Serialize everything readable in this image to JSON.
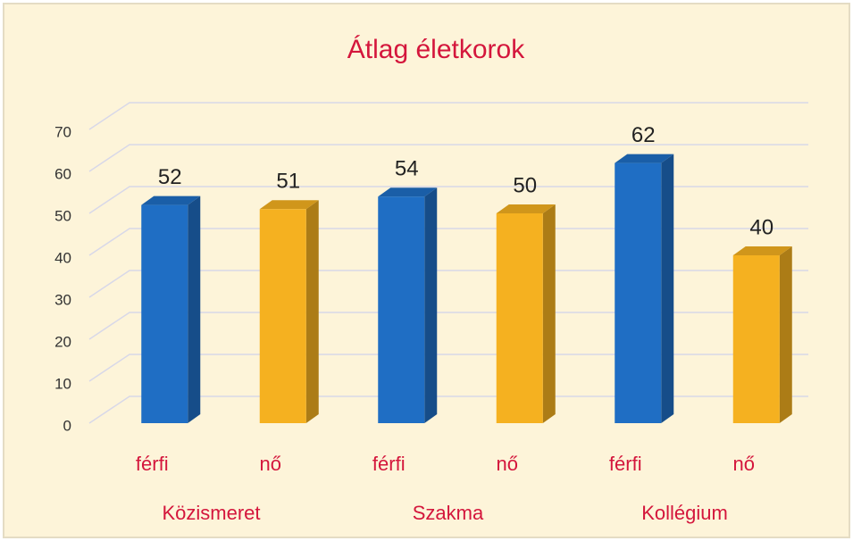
{
  "chart_data": {
    "type": "bar3d",
    "title": "Átlag életkorok",
    "categories": [
      "férfi",
      "nő",
      "férfi",
      "nő",
      "férfi",
      "nő"
    ],
    "groups": [
      "Közismeret",
      "Szakma",
      "Kollégium"
    ],
    "values": [
      52,
      51,
      54,
      50,
      62,
      40
    ],
    "colors": [
      "#1f6ec4",
      "#f5b120",
      "#1f6ec4",
      "#f5b120",
      "#1f6ec4",
      "#f5b120"
    ],
    "ylim": [
      0,
      70
    ],
    "yticks": [
      0,
      10,
      20,
      30,
      40,
      50,
      60,
      70
    ],
    "grid": true
  }
}
